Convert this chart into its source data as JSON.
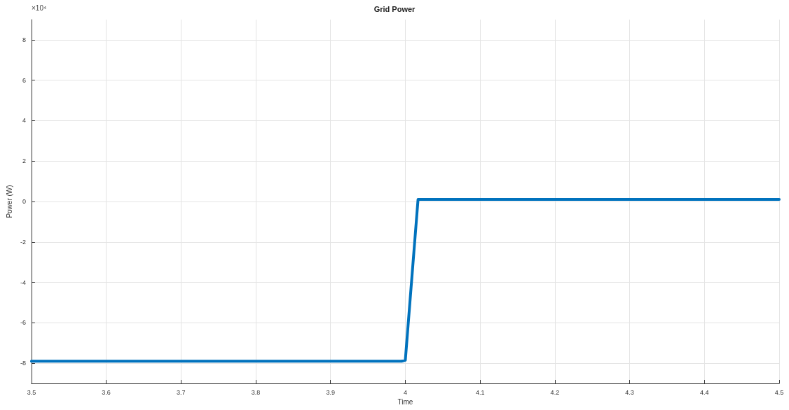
{
  "chart_data": {
    "type": "line",
    "title": "Grid Power",
    "xlabel": "Time",
    "ylabel": "Power (W)",
    "annotations": [
      "×10⁴"
    ],
    "x": [
      3.5,
      3.6,
      3.7,
      3.8,
      3.9,
      3.995,
      4.0,
      4.017,
      4.1,
      4.2,
      4.3,
      4.4,
      4.5
    ],
    "series": [
      {
        "color": "#0072bd",
        "values": [
          -7.9,
          -7.9,
          -7.9,
          -7.9,
          -7.9,
          -7.9,
          -7.85,
          0.1,
          0.1,
          0.1,
          0.1,
          0.1,
          0.1
        ]
      }
    ],
    "xlim": [
      3.5,
      4.5
    ],
    "xticks": [
      3.5,
      3.6,
      3.7,
      3.8,
      3.9,
      4,
      4.1,
      4.2,
      4.3,
      4.4,
      4.5
    ],
    "ylim": [
      -9,
      9
    ],
    "yticks": [
      -8,
      -6,
      -4,
      -2,
      0,
      2,
      4,
      6,
      8
    ],
    "grid": true,
    "marker": "none",
    "line_style": "solid"
  }
}
